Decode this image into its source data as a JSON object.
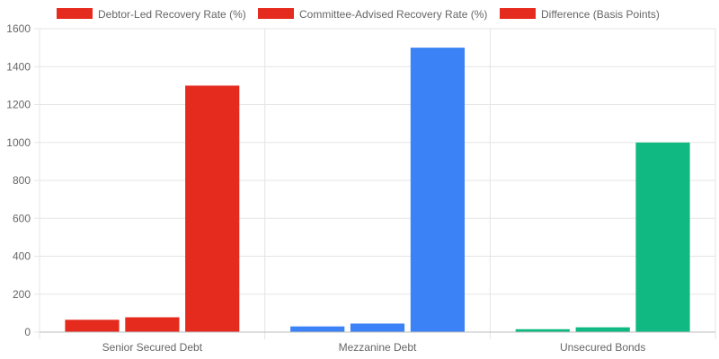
{
  "chart_data": {
    "type": "bar",
    "categories": [
      "Senior Secured Debt",
      "Mezzanine Debt",
      "Unsecured Bonds"
    ],
    "series": [
      {
        "name": "Debtor-Led Recovery Rate (%)",
        "values": [
          65,
          30,
          15
        ]
      },
      {
        "name": "Committee-Advised Recovery Rate (%)",
        "values": [
          78,
          45,
          25
        ]
      },
      {
        "name": "Difference (Basis Points)",
        "values": [
          1300,
          1500,
          1000
        ]
      }
    ],
    "category_colors": [
      "#e52a1e",
      "#3b82f6",
      "#10b981"
    ],
    "legend_color": "#e52a1e",
    "ylim": [
      0,
      1600
    ],
    "yticks": [
      0,
      200,
      400,
      600,
      800,
      1000,
      1200,
      1400,
      1600
    ],
    "grid": true,
    "legend_position": "top-center"
  }
}
